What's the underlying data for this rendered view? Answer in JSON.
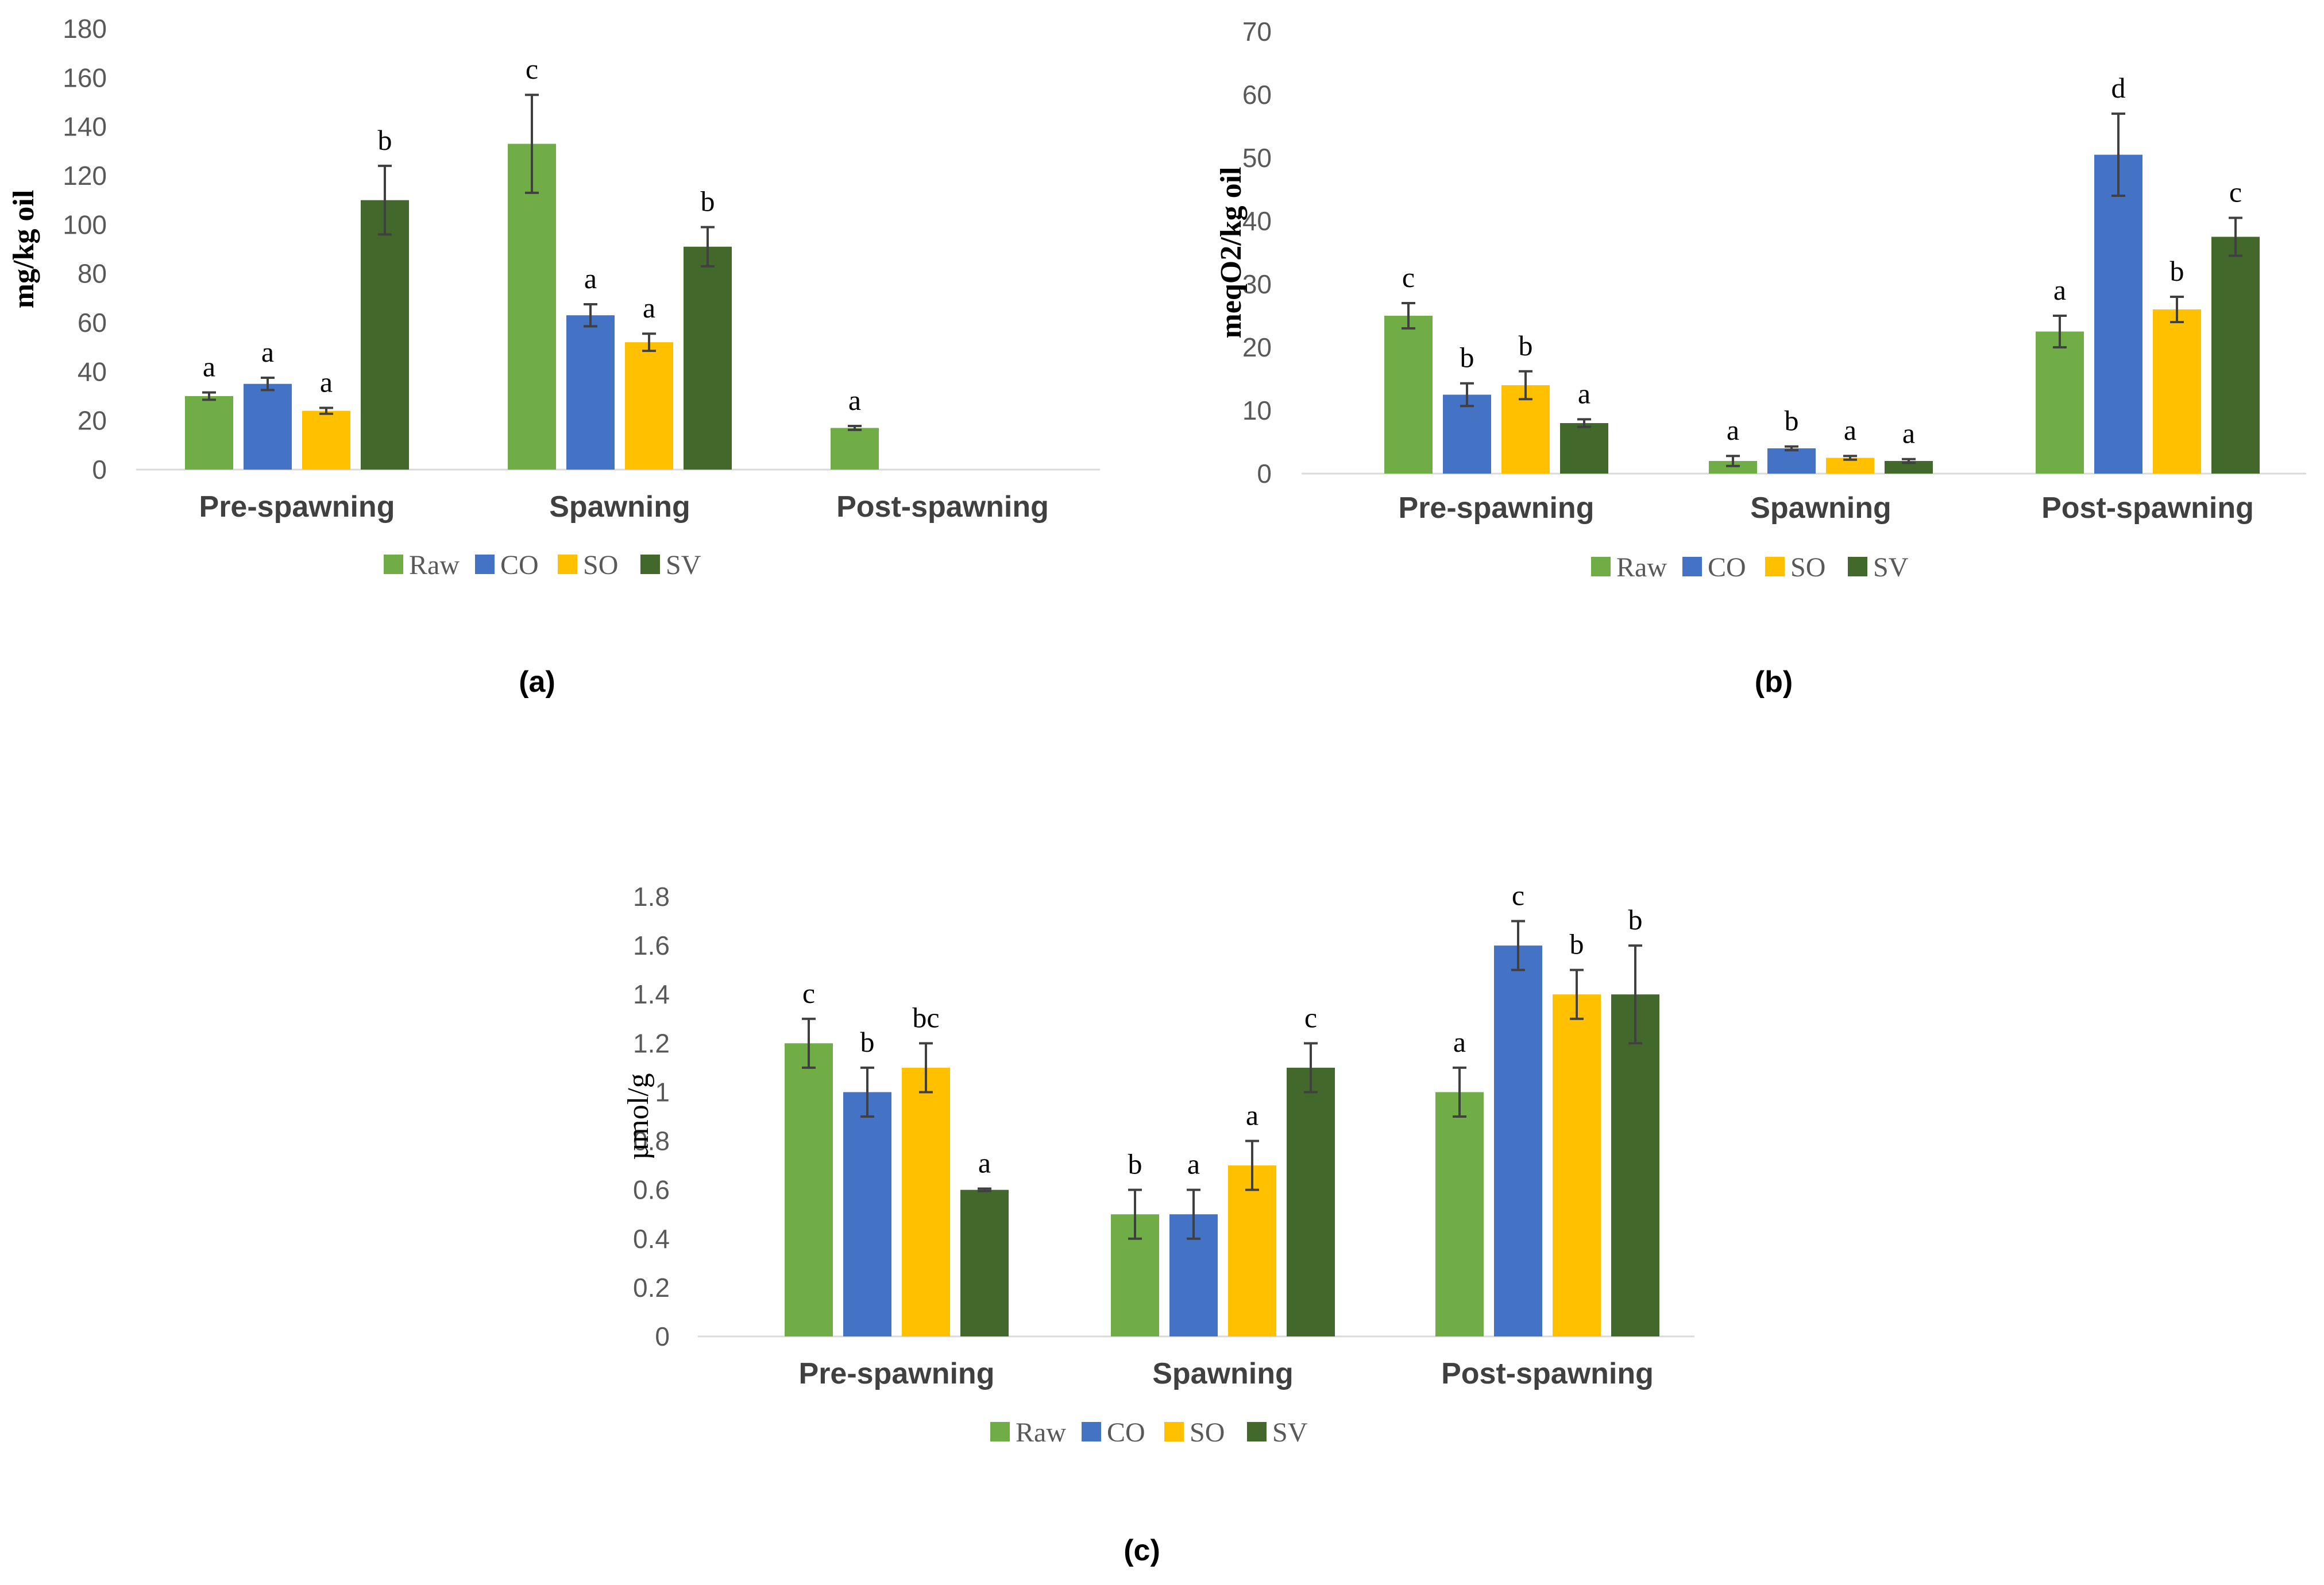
{
  "chart_data": [
    {
      "type": "bar",
      "panel_label": "(a)",
      "categories": [
        "Pre-spawning",
        "Spawning",
        "Post-spawning"
      ],
      "ylabel": "mg/kg oil",
      "ylim": [
        0,
        180
      ],
      "yticks": [
        "0",
        "20",
        "40",
        "60",
        "80",
        "100",
        "120",
        "140",
        "160",
        "180"
      ],
      "series": [
        {
          "name": "Raw",
          "color": "#70AD47",
          "values": [
            30,
            133,
            17
          ],
          "errors": [
            1.5,
            20,
            0.8
          ],
          "letters": [
            "a",
            "c",
            "a"
          ]
        },
        {
          "name": "CO",
          "color": "#4472C4",
          "values": [
            35,
            63,
            null
          ],
          "errors": [
            2.5,
            4.5,
            null
          ],
          "letters": [
            "a",
            "a",
            ""
          ]
        },
        {
          "name": "SO",
          "color": "#FFC000",
          "values": [
            24,
            52,
            null
          ],
          "errors": [
            1.2,
            3.5,
            null
          ],
          "letters": [
            "a",
            "a",
            ""
          ]
        },
        {
          "name": "SV",
          "color": "#43682B",
          "values": [
            110,
            91,
            null
          ],
          "errors": [
            14,
            8,
            null
          ],
          "letters": [
            "b",
            "b",
            ""
          ]
        }
      ],
      "legend_position": "bottom"
    },
    {
      "type": "bar",
      "panel_label": "(b)",
      "categories": [
        "Pre-spawning",
        "Spawning",
        "Post-spawning"
      ],
      "ylabel": "meqO2/kg oil",
      "ylim": [
        0,
        70
      ],
      "yticks": [
        "0",
        "10",
        "20",
        "30",
        "40",
        "50",
        "60",
        "70"
      ],
      "series": [
        {
          "name": "Raw",
          "color": "#70AD47",
          "values": [
            25,
            2,
            22.5
          ],
          "errors": [
            2,
            0.8,
            2.5
          ],
          "letters": [
            "c",
            "a",
            "a"
          ]
        },
        {
          "name": "CO",
          "color": "#4472C4",
          "values": [
            12.5,
            4,
            50.5
          ],
          "errors": [
            1.8,
            0.3,
            6.5
          ],
          "letters": [
            "b",
            "b",
            "d"
          ]
        },
        {
          "name": "SO",
          "color": "#FFC000",
          "values": [
            14,
            2.5,
            26
          ],
          "errors": [
            2.2,
            0.3,
            2
          ],
          "letters": [
            "b",
            "a",
            "b"
          ]
        },
        {
          "name": "SV",
          "color": "#43682B",
          "values": [
            8,
            2,
            37.5
          ],
          "errors": [
            0.6,
            0.3,
            3
          ],
          "letters": [
            "a",
            "a",
            "c"
          ]
        }
      ],
      "legend_position": "bottom"
    },
    {
      "type": "bar",
      "panel_label": "(c)",
      "categories": [
        "Pre-spawning",
        "Spawning",
        "Post-spawning"
      ],
      "ylabel": "µmol/g",
      "ylim": [
        0,
        1.8
      ],
      "yticks": [
        "0",
        "0.2",
        "0.4",
        "0.6",
        "0.8",
        "1",
        "1.2",
        "1.4",
        "1.6",
        "1.8"
      ],
      "series": [
        {
          "name": "Raw",
          "color": "#70AD47",
          "values": [
            1.2,
            0.5,
            1.0
          ],
          "errors": [
            0.1,
            0.1,
            0.1
          ],
          "letters": [
            "c",
            "b",
            "a"
          ]
        },
        {
          "name": "CO",
          "color": "#4472C4",
          "values": [
            1.0,
            0.5,
            1.6
          ],
          "errors": [
            0.1,
            0.1,
            0.1
          ],
          "letters": [
            "b",
            "a",
            "c"
          ]
        },
        {
          "name": "SO",
          "color": "#FFC000",
          "values": [
            1.1,
            0.7,
            1.4
          ],
          "errors": [
            0.1,
            0.1,
            0.1
          ],
          "letters": [
            "bc",
            "a",
            "b"
          ]
        },
        {
          "name": "SV",
          "color": "#43682B",
          "values": [
            0.6,
            1.1,
            1.4
          ],
          "errors": [
            0.005,
            0.1,
            0.2
          ],
          "letters": [
            "a",
            "c",
            "b"
          ]
        }
      ],
      "legend_position": "bottom"
    }
  ]
}
